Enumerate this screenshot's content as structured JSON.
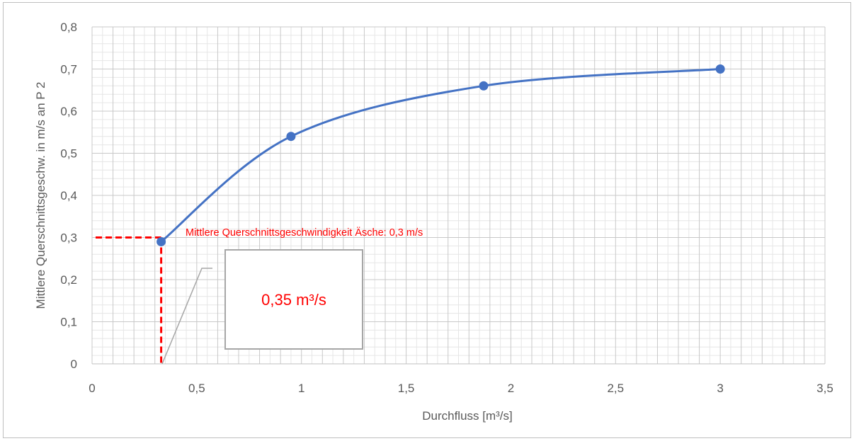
{
  "chart_data": {
    "type": "line",
    "title": "",
    "xlabel": "Durchfluss [m³/s]",
    "ylabel": "Mittlere Querschnittsgeschw. in m/s an P 2",
    "xlim": [
      0,
      3.5
    ],
    "ylim": [
      0,
      0.8
    ],
    "x_ticks": [
      "0",
      "0,5",
      "1",
      "1,5",
      "2",
      "2,5",
      "3",
      "3,5"
    ],
    "y_ticks": [
      "0",
      "0,1",
      "0,2",
      "0,3",
      "0,4",
      "0,5",
      "0,6",
      "0,7",
      "0,8"
    ],
    "grid": true,
    "smooth": true,
    "series": [
      {
        "color": "#4472c4",
        "points": [
          {
            "x": 0.33,
            "y": 0.29
          },
          {
            "x": 0.95,
            "y": 0.54
          },
          {
            "x": 1.87,
            "y": 0.66
          },
          {
            "x": 3.0,
            "y": 0.7
          }
        ]
      }
    ],
    "reference": {
      "x": 0.33,
      "y": 0.3,
      "color": "#ff0000",
      "label": "Mittlere Querschnittsgeschwindigkeit Äsche: 0,3 m/s"
    },
    "callout": {
      "text": "0,35 m³/s"
    }
  }
}
